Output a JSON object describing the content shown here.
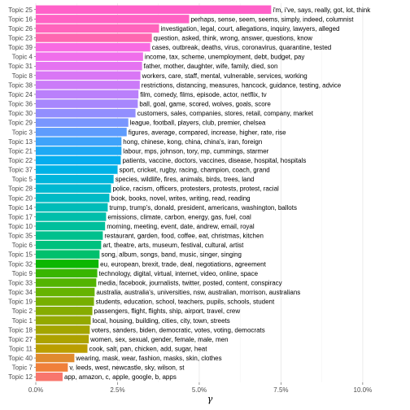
{
  "chart_data": {
    "type": "bar",
    "orientation": "horizontal",
    "xlabel": "γ",
    "ylabel": "",
    "xlim": [
      0,
      0.105
    ],
    "xticks": [
      {
        "value": 0.0,
        "label": "0.0%"
      },
      {
        "value": 0.025,
        "label": "2.5%"
      },
      {
        "value": 0.05,
        "label": "5.0%"
      },
      {
        "value": 0.075,
        "label": "7.5%"
      },
      {
        "value": 0.1,
        "label": "10.0%"
      }
    ],
    "grid": true,
    "legend": "none",
    "bars": [
      {
        "topic": "Topic 25",
        "value": 0.072,
        "terms": "i'm, i've, says, really, got, lot, think",
        "color": "#FF61C9"
      },
      {
        "topic": "Topic 16",
        "value": 0.0469,
        "terms": "perhaps, sense, seem, seems, simply, indeed, columnist",
        "color": "#FF62C4"
      },
      {
        "topic": "Topic 26",
        "value": 0.0377,
        "terms": "investigation, legal, court, allegations, inquiry, lawyers, alleged",
        "color": "#FF64BC"
      },
      {
        "topic": "Topic 23",
        "value": 0.0355,
        "terms": "question, asked, think, wrong, answer, questions, know",
        "color": "#FE67B0"
      },
      {
        "topic": "Topic 39",
        "value": 0.035,
        "terms": "cases, outbreak, deaths, virus, coronavirus, quarantine, tested",
        "color": "#F86BE2"
      },
      {
        "topic": "Topic 4",
        "value": 0.0328,
        "terms": "income, tax, scheme, unemployment, debt, budget, pay",
        "color": "#F06EEB"
      },
      {
        "topic": "Topic 31",
        "value": 0.0325,
        "terms": "father, mother, daughter, wife, family, died, son",
        "color": "#E572F1"
      },
      {
        "topic": "Topic 8",
        "value": 0.032,
        "terms": "workers, care, staff, mental, vulnerable, services, working",
        "color": "#D976F5"
      },
      {
        "topic": "Topic 38",
        "value": 0.0318,
        "terms": "restrictions, distancing, measures, hancock, guidance, testing, advice",
        "color": "#CB7BF8"
      },
      {
        "topic": "Topic 24",
        "value": 0.0314,
        "terms": "film, comedy, films, episode, actor, netflix, tv",
        "color": "#BA80FB"
      },
      {
        "topic": "Topic 36",
        "value": 0.0312,
        "terms": "ball, goal, game, scored, wolves, goals, score",
        "color": "#A787FD"
      },
      {
        "topic": "Topic 30",
        "value": 0.0305,
        "terms": "customers, sales, companies, stores, retail, company, market",
        "color": "#928EFE"
      },
      {
        "topic": "Topic 29",
        "value": 0.0283,
        "terms": "league, football, players, club, premier, chelsea",
        "color": "#7996FE"
      },
      {
        "topic": "Topic 3",
        "value": 0.0278,
        "terms": "figures, average, compared, increase, higher, rate, rise",
        "color": "#5E9CFD"
      },
      {
        "topic": "Topic 13",
        "value": 0.0262,
        "terms": "hong, chinese, kong, china, china's, iran, foreign",
        "color": "#3FA3FA"
      },
      {
        "topic": "Topic 21",
        "value": 0.0262,
        "terms": "labour, mps, johnson, tory, mp, cummings, starmer",
        "color": "#1EA9F4"
      },
      {
        "topic": "Topic 22",
        "value": 0.026,
        "terms": "patients, vaccine, doctors, vaccines, disease, hospital, hospitals",
        "color": "#06ADEE"
      },
      {
        "topic": "Topic 37",
        "value": 0.025,
        "terms": "sport, cricket, rugby, racing, champion, coach, grand",
        "color": "#00B2E6"
      },
      {
        "topic": "Topic 5",
        "value": 0.0238,
        "terms": "species, wildlife, fires, animals, birds, trees, land",
        "color": "#00B5DC"
      },
      {
        "topic": "Topic 28",
        "value": 0.023,
        "terms": "police, racism, officers, protesters, protests, protest, racial",
        "color": "#00B8D1"
      },
      {
        "topic": "Topic 20",
        "value": 0.0225,
        "terms": "book, books, novel, writes, writing, read, reading",
        "color": "#00BAC5"
      },
      {
        "topic": "Topic 14",
        "value": 0.022,
        "terms": "trump, trump's, donald, president, americans, washington, ballots",
        "color": "#00BCB8"
      },
      {
        "topic": "Topic 17",
        "value": 0.0215,
        "terms": "emissions, climate, carbon, energy, gas, fuel, coal",
        "color": "#00BEAA"
      },
      {
        "topic": "Topic 10",
        "value": 0.0212,
        "terms": "morning, meeting, event, date, andrew, email, royal",
        "color": "#00BF9C"
      },
      {
        "topic": "Topic 35",
        "value": 0.0205,
        "terms": "restaurant, garden, food, coffee, eat, christmas, kitchen",
        "color": "#00C08D"
      },
      {
        "topic": "Topic 6",
        "value": 0.02,
        "terms": "art, theatre, arts, museum, festival, cultural, artist",
        "color": "#00C17E"
      },
      {
        "topic": "Topic 15",
        "value": 0.0195,
        "terms": "song, album, songs, band, music, singer, singing",
        "color": "#00C06D"
      },
      {
        "topic": "Topic 32",
        "value": 0.0192,
        "terms": "eu, european, brexit, trade, deal, negotiations, agreement",
        "color": "#0CB702"
      },
      {
        "topic": "Topic 9",
        "value": 0.0188,
        "terms": "technology, digital, virtual, internet, video, online, space",
        "color": "#39B600"
      },
      {
        "topic": "Topic 33",
        "value": 0.0185,
        "terms": "media, facebook, journalists, twitter, posted, content, conspiracy",
        "color": "#53B400"
      },
      {
        "topic": "Topic 34",
        "value": 0.018,
        "terms": "australia, australia's, universities, nsw, australian, morrison, australians",
        "color": "#66B300"
      },
      {
        "topic": "Topic 19",
        "value": 0.0178,
        "terms": "students, education, school, teachers, pupils, schools, student",
        "color": "#77AF00"
      },
      {
        "topic": "Topic 2",
        "value": 0.0173,
        "terms": "passengers, flight, flights, ship, airport, travel, crew",
        "color": "#86AC00"
      },
      {
        "topic": "Topic 1",
        "value": 0.0168,
        "terms": "local, housing, building, cities, city, town, streets",
        "color": "#93A900"
      },
      {
        "topic": "Topic 18",
        "value": 0.0165,
        "terms": "voters, sanders, biden, democratic, votes, voting, democrats",
        "color": "#A3A500"
      },
      {
        "topic": "Topic 27",
        "value": 0.0162,
        "terms": "women, sex, sexual, gender, female, male, men",
        "color": "#ADA200"
      },
      {
        "topic": "Topic 11",
        "value": 0.0158,
        "terms": "cook, salt, pan, chicken, add, sugar, heat",
        "color": "#BA9E00"
      },
      {
        "topic": "Topic 40",
        "value": 0.0118,
        "terms": "wearing, mask, wear, fashion, masks, skin, clothes",
        "color": "#E08A2E"
      },
      {
        "topic": "Topic 7",
        "value": 0.0098,
        "terms": "v, leeds, west, newcastle, sky, wilson, st",
        "color": "#F0803A"
      },
      {
        "topic": "Topic 12",
        "value": 0.0082,
        "terms": "app, amazon, c, apple, google, b, apps",
        "color": "#F8766D"
      }
    ]
  }
}
